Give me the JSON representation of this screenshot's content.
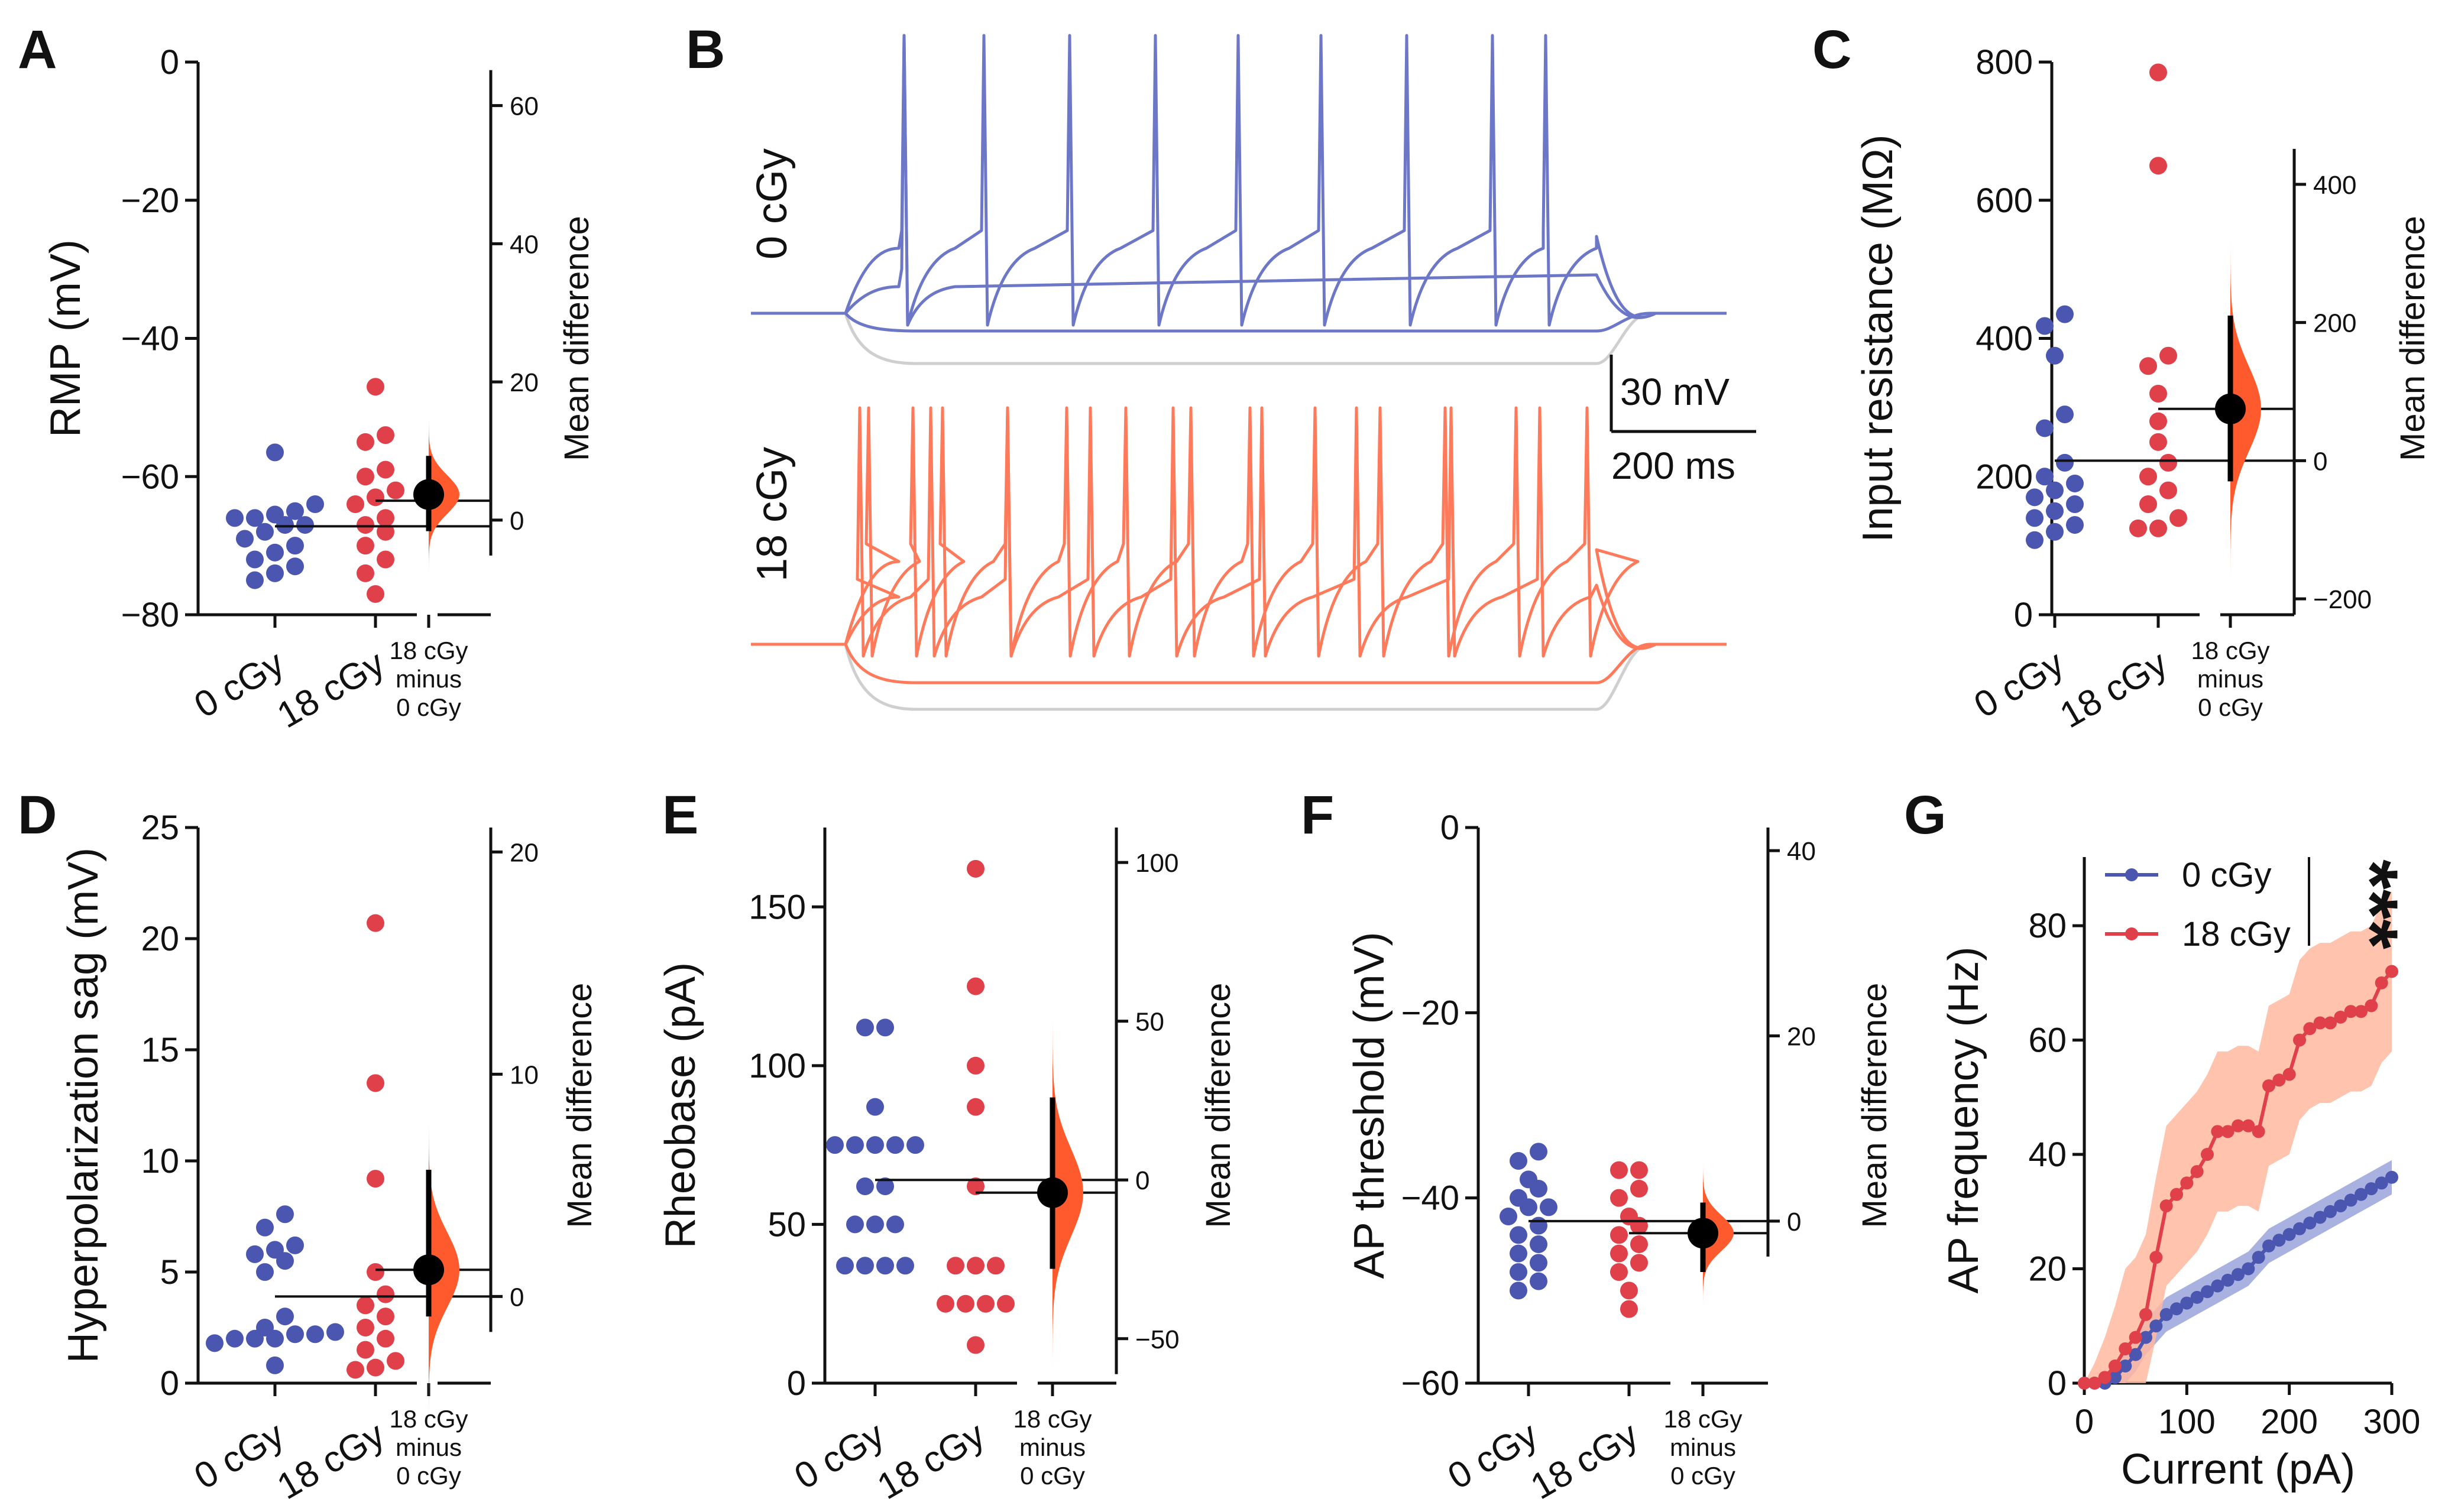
{
  "colors": {
    "ctrl": "#4a56b0",
    "irr": "#e0404a",
    "orange": "#ff5a2e",
    "orange_light": "#ffb8a0",
    "blue_light": "#9aa3dc",
    "gray": "#cfcfcf",
    "trace_blue": "#6d77c7",
    "trace_orange": "#ff7a5a"
  },
  "chart_data": [
    {
      "id": "A",
      "type": "scatter",
      "panel": "A",
      "ylabel": "RMP (mV)",
      "ylim": [
        -80,
        0
      ],
      "yticks": [
        0,
        -20,
        -40,
        -60,
        -80
      ],
      "md_label": "Mean difference",
      "md_ticks": [
        60,
        40,
        20,
        0
      ],
      "md_ylim": [
        -13.7,
        66.3
      ],
      "groups": [
        "0 cGy",
        "18 cGy"
      ],
      "diff_label": [
        "18 cGy",
        "minus",
        "0 cGy"
      ],
      "g1": [
        -56.5,
        -64,
        -65,
        -65.5,
        -66,
        -66,
        -67,
        -67,
        -68,
        -69,
        -70,
        -71,
        -72,
        -73,
        -74,
        -75
      ],
      "g2": [
        -47,
        -54,
        -55,
        -59,
        -60,
        -62,
        -63,
        -64,
        -66,
        -67,
        -68,
        -70,
        -72,
        -74,
        -77
      ],
      "mean1": -67.2,
      "mean2": -63.5,
      "diff": {
        "mean": 3.7,
        "ci": [
          -1.6,
          9.3
        ]
      }
    },
    {
      "id": "C",
      "type": "scatter",
      "panel": "C",
      "ylabel": "Input resistance (MΩ)",
      "ylim": [
        0,
        800
      ],
      "yticks": [
        800,
        600,
        400,
        200,
        0
      ],
      "md_label": "Mean difference",
      "md_ticks": [
        400,
        200,
        0,
        -200
      ],
      "md_ylim": [
        -223,
        577
      ],
      "groups": [
        "0 cGy",
        "18 cGy"
      ],
      "diff_label": [
        "18 cGy",
        "minus",
        "0 cGy"
      ],
      "g1": [
        435,
        418,
        375,
        290,
        270,
        220,
        200,
        190,
        180,
        170,
        160,
        150,
        140,
        130,
        120,
        108
      ],
      "g2": [
        785,
        650,
        375,
        360,
        320,
        280,
        250,
        220,
        200,
        180,
        160,
        140,
        125,
        125
      ],
      "mean1": 223,
      "mean2": 298,
      "diff": {
        "mean": 75,
        "ci": [
          -30,
          210
        ]
      }
    },
    {
      "id": "D",
      "type": "scatter",
      "panel": "D",
      "ylabel": "Hyperpolarization sag (mV)",
      "ylim": [
        0,
        25
      ],
      "yticks": [
        25,
        20,
        15,
        10,
        5,
        0
      ],
      "md_label": "Mean difference",
      "md_ticks": [
        20,
        10,
        0
      ],
      "md_ylim": [
        -3.9,
        21.1
      ],
      "groups": [
        "0 cGy",
        "18 cGy"
      ],
      "diff_label": [
        "18 cGy",
        "minus",
        "0 cGy"
      ],
      "g1": [
        7.6,
        7.0,
        6.2,
        6.0,
        5.8,
        5.5,
        5.0,
        3.0,
        2.5,
        2.3,
        2.2,
        2.0,
        2.0,
        2.0,
        2.2,
        1.8,
        0.8
      ],
      "g2": [
        20.7,
        13.5,
        9.2,
        5.0,
        4.0,
        3.5,
        3.0,
        2.5,
        2.0,
        1.5,
        1.0,
        0.7,
        0.6
      ],
      "mean1": 3.9,
      "mean2": 5.1,
      "diff": {
        "mean": 1.2,
        "ci": [
          -0.9,
          5.7
        ]
      }
    },
    {
      "id": "E",
      "type": "scatter",
      "panel": "E",
      "ylabel": "Rheobase (pA)",
      "ylim": [
        0,
        175
      ],
      "yticks": [
        150,
        100,
        50,
        0
      ],
      "md_label": "Mean difference",
      "md_ticks": [
        100,
        50,
        0,
        -50
      ],
      "md_ylim": [
        -64,
        111
      ],
      "groups": [
        "0 cGy",
        "18 cGy"
      ],
      "diff_label": [
        "18 cGy",
        "minus",
        "0 cGy"
      ],
      "g1": [
        112,
        112,
        87,
        75,
        75,
        75,
        75,
        75,
        62,
        62,
        50,
        50,
        50,
        37,
        37,
        37,
        37
      ],
      "g2": [
        162,
        125,
        100,
        87,
        62,
        37,
        37,
        37,
        25,
        25,
        25,
        25,
        12
      ],
      "mean1": 64,
      "mean2": 60,
      "diff": {
        "mean": -4,
        "ci": [
          -28,
          26
        ]
      }
    },
    {
      "id": "F",
      "type": "scatter",
      "panel": "F",
      "ylabel": "AP threshold (mV)",
      "ylim": [
        -60,
        0
      ],
      "yticks": [
        0,
        -20,
        -40,
        -60
      ],
      "md_label": "Mean difference",
      "md_ticks": [
        40,
        20,
        0
      ],
      "md_ylim": [
        -17.5,
        42.5
      ],
      "groups": [
        "0 cGy",
        "18 cGy"
      ],
      "diff_label": [
        "18 cGy",
        "minus",
        "0 cGy"
      ],
      "g1": [
        -35,
        -36,
        -38,
        -39,
        -40,
        -41,
        -41,
        -42,
        -43,
        -44,
        -45,
        -46,
        -47,
        -48,
        -49,
        -50
      ],
      "g2": [
        -37,
        -37,
        -39,
        -40,
        -42,
        -43,
        -44,
        -45,
        -46,
        -47,
        -48,
        -50,
        -52
      ],
      "mean1": -42.5,
      "mean2": -43.8,
      "diff": {
        "mean": -1.3,
        "ci": [
          -5.5,
          2.0
        ]
      }
    },
    {
      "id": "G",
      "type": "line",
      "panel": "G",
      "xlabel": "Current (pA)",
      "ylabel": "AP frequency (Hz)",
      "xlim": [
        0,
        300
      ],
      "ylim": [
        0,
        92
      ],
      "xticks": [
        0,
        100,
        200,
        300
      ],
      "yticks": [
        0,
        20,
        40,
        60,
        80
      ],
      "x": [
        0,
        10,
        20,
        30,
        40,
        50,
        60,
        70,
        80,
        90,
        100,
        110,
        120,
        130,
        140,
        150,
        160,
        170,
        180,
        190,
        200,
        210,
        220,
        230,
        240,
        250,
        260,
        270,
        280,
        290,
        300
      ],
      "series": [
        {
          "name": "0 cGy",
          "values": [
            0,
            0,
            0,
            1,
            3,
            5,
            8,
            10,
            12,
            13,
            14,
            15,
            16,
            17,
            18,
            19,
            20,
            22,
            24,
            25,
            26,
            27,
            28,
            29,
            30,
            31,
            32,
            33,
            34,
            35,
            36
          ],
          "err": 3
        },
        {
          "name": "18 cGy",
          "values": [
            0,
            0,
            1,
            3,
            6,
            8,
            12,
            22,
            31,
            33,
            35,
            37,
            40,
            44,
            44,
            45,
            45,
            44,
            52,
            53,
            54,
            60,
            62,
            63,
            63,
            64,
            65,
            65,
            66,
            70,
            72
          ],
          "err": 14
        }
      ],
      "annotation": "***"
    }
  ],
  "panel_b": {
    "letter": "B",
    "traces": [
      {
        "label": "0 cGy"
      },
      {
        "label": "18 cGy"
      }
    ],
    "scale_v": "30 mV",
    "scale_t": "200 ms"
  }
}
